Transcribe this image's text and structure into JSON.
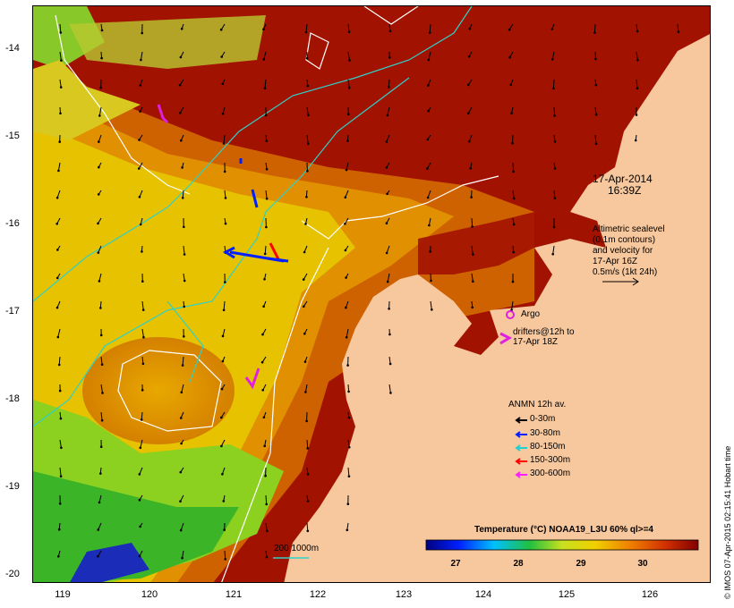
{
  "map": {
    "date": "17-Apr-2014",
    "time": "16:39Z",
    "y_ticks": [
      "-14",
      "-15",
      "-16",
      "-17",
      "-18",
      "-19",
      "-20"
    ],
    "x_ticks": [
      "119",
      "120",
      "121",
      "122",
      "123",
      "124",
      "125",
      "126"
    ],
    "altimetric_note": [
      "Altimetric sealevel",
      "(0.1m contours)",
      "and velocity for",
      "17-Apr 16Z",
      "0.5m/s (1kt 24h)"
    ],
    "argo_label": "Argo",
    "drifters_label": [
      "drifters@12h to",
      "17-Apr 18Z"
    ],
    "anmn_title": "ANMN 12h av.",
    "anmn_items": [
      {
        "label": "0-30m",
        "color": "#000000"
      },
      {
        "label": "30-80m",
        "color": "#0020ff"
      },
      {
        "label": "80-150m",
        "color": "#20d0d0"
      },
      {
        "label": "150-300m",
        "color": "#ff0000"
      },
      {
        "label": "300-600m",
        "color": "#ff20ff"
      }
    ],
    "isobath_label": "200  1000m",
    "colorbar_title": "Temperature (°C) NOAA19_L3U 60% ql>=4",
    "colorbar_ticks": [
      "27",
      "28",
      "29",
      "30"
    ],
    "watermark": "© IMOS 07-Apr-2015 02:15:41 Hobart time",
    "colors": {
      "land": "#f7c79d",
      "warm": "#9e0c00",
      "hot": "#c83a00",
      "mid": "#e89400",
      "yellow": "#e8d820",
      "green": "#5ec020",
      "argo": "#e020e0",
      "contour": "#ffffff",
      "isobath": "#30d0c8"
    }
  }
}
